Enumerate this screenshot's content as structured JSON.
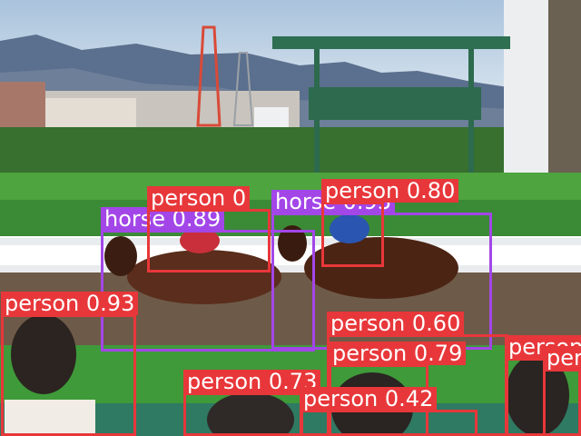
{
  "image": {
    "description_colors": {
      "sky": "#b9cde0",
      "mountains": "#5b6f8e",
      "grass": "#3f9a3a",
      "dirt": "#6e5a48",
      "rail": "#e9ecee"
    }
  },
  "detections": [
    {
      "label": "horse",
      "score": "0.89",
      "color": "#a346e8",
      "name": "horse-left"
    },
    {
      "label": "horse",
      "score": "0.93",
      "color": "#a346e8",
      "name": "horse-right"
    },
    {
      "label": "person",
      "score": "0.80",
      "color": "#e8373a",
      "name": "jockey-right"
    },
    {
      "label": "person",
      "score": "0.93",
      "color": "#e8373a",
      "name": "spectator-camera"
    },
    {
      "label": "person",
      "score": "0.60",
      "color": "#e8373a",
      "name": "spectator-mid"
    },
    {
      "label": "person",
      "score": "0.79",
      "color": "#e8373a",
      "name": "spectator-mid-lower"
    },
    {
      "label": "person",
      "score": "0.73",
      "color": "#e8373a",
      "name": "spectator-bottom-center"
    },
    {
      "label": "person",
      "score": "0.42",
      "color": "#e8373a",
      "name": "spectator-bottom-right-center"
    },
    {
      "label": "person",
      "score": "",
      "color": "#e8373a",
      "name": "spectator-right-edge"
    },
    {
      "label": "person",
      "score": "",
      "color": "#e8373a",
      "name": "spectator-far-right"
    },
    {
      "label": "person",
      "score": "0",
      "color": "#e8373a",
      "name": "jockey-left"
    }
  ]
}
